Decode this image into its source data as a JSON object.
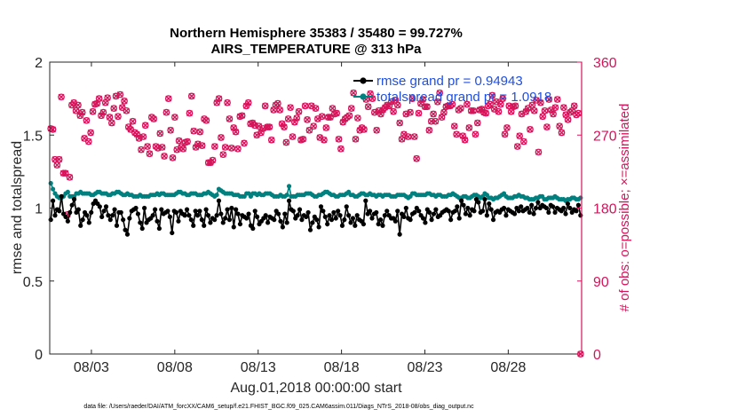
{
  "chart_data": {
    "type": "line",
    "title_line1": "Northern Hemisphere 35383 / 35480 = 99.727%",
    "title_line2": "AIRS_TEMPERATURE @ 313 hPa",
    "xlabel": "Aug.01,2018 00:00:00 start",
    "ylabel": "rmse and totalspread",
    "ylabel_right": "# of obs: o=possible; ×=assimilated",
    "footer": "data file: /Users/raeder/DAI/ATM_forcXX/CAM6_setup/f.e21.FHIST_BGC.f09_025.CAM6assim.011/Diags_NTrS_2018-08/obs_diag_output.nc",
    "xlim": [
      0.5,
      32.4
    ],
    "ylim": [
      0,
      2
    ],
    "ylim_right": [
      0,
      360
    ],
    "xticks": [
      3,
      8,
      13,
      18,
      23,
      28
    ],
    "xtick_labels": [
      "08/03",
      "08/08",
      "08/13",
      "08/18",
      "08/23",
      "08/28"
    ],
    "yticks": [
      0,
      0.5,
      1,
      1.5,
      2
    ],
    "ytick_labels": [
      "0",
      "0.5",
      "1",
      "1.5",
      "2"
    ],
    "yticks_right": [
      0,
      90,
      180,
      270,
      360
    ],
    "ytick_labels_right": [
      "0",
      "90",
      "180",
      "270",
      "360"
    ],
    "colors": {
      "rmse": "#000000",
      "spread": "#00807f",
      "obs": "#d6145a",
      "legend_text": "#1f4fe0"
    },
    "series": [
      {
        "name": "rmse grand pr = 0.94943",
        "values": [
          0.92,
          1.05,
          0.95,
          0.99,
          0.98,
          1.08,
          0.96,
          0.94,
          0.91,
          0.97,
          1.02,
          1.06,
          0.97,
          0.99,
          0.88,
          0.92,
          0.97,
          0.95,
          0.9,
          0.97,
          1.03,
          1.05,
          1.03,
          1.01,
          0.94,
          0.98,
          1.01,
          0.95,
          0.92,
          0.95,
          0.99,
          0.88,
          0.97,
          0.97,
          0.92,
          0.85,
          0.82,
          0.93,
          0.98,
          0.99,
          1.0,
          0.96,
          0.9,
          0.86,
          1.0,
          0.9,
          0.92,
          0.93,
          0.95,
          0.99,
          0.91,
          0.86,
          0.99,
          0.96,
          0.97,
          0.98,
          0.94,
          0.83,
          0.98,
          0.97,
          0.91,
          0.98,
          0.96,
          0.95,
          0.99,
          0.95,
          0.92,
          0.88,
          0.98,
          0.95,
          0.98,
          0.92,
          0.88,
          0.99,
          0.95,
          0.9,
          0.93,
          0.92,
          0.95,
          1.05,
          0.96,
          0.9,
          0.93,
          0.99,
          0.92,
          1.0,
          0.87,
          0.99,
          0.96,
          0.89,
          0.95,
          0.94,
          0.93,
          0.96,
          0.88,
          0.86,
          0.98,
          0.94,
          0.89,
          0.91,
          0.93,
          0.95,
          0.9,
          0.94,
          0.93,
          0.92,
          0.98,
          0.96,
          0.91,
          0.87,
          0.96,
          0.9,
          1.05,
          0.99,
          0.98,
          0.93,
          0.95,
          0.99,
          0.92,
          0.95,
          0.94,
          0.97,
          0.85,
          0.9,
          0.94,
          0.92,
          0.87,
          1.01,
          0.98,
          0.94,
          0.89,
          0.95,
          0.92,
          0.97,
          0.93,
          0.98,
          0.95,
          0.88,
          0.92,
          1.01,
          0.95,
          0.9,
          0.93,
          0.88,
          0.95,
          0.92,
          0.91,
          0.89,
          1.05,
          0.96,
          0.98,
          0.93,
          0.96,
          0.97,
          0.89,
          0.92,
          0.88,
          0.95,
          0.98,
          0.95,
          0.93,
          0.93,
          0.91,
          0.98,
          0.82,
          0.96,
          0.94,
          1.0,
          0.93,
          0.92,
          0.96,
          0.97,
          1.0,
          0.98,
          0.95,
          0.93,
          0.9,
          0.99,
          0.97,
          0.92,
          0.96,
          0.99,
          0.94,
          0.95,
          0.97,
          0.98,
          0.99,
          0.98,
          0.92,
          0.97,
          0.98,
          1.01,
          0.93,
          1.05,
          1.02,
          0.96,
          1.0,
          0.95,
          0.99,
          0.98,
          1.06,
          1.04,
          0.97,
          0.98,
          1.06,
          0.95,
          1.03,
          0.99,
          0.92,
          0.97,
          0.98,
          0.97,
          0.99,
          1.0,
          0.95,
          0.99,
          0.98,
          0.97,
          0.96,
          1.0,
          0.98,
          1.01,
          0.98,
          0.99,
          1.0,
          0.97,
          1.02,
          0.96,
          1.0,
          1.04,
          1.0,
          1.02,
          1.01,
          1.0,
          0.97,
          1.02,
          1.01,
          0.97,
          1.0,
          0.99,
          0.98,
          1.0,
          0.96,
          1.03,
          1.0,
          0.97,
          0.99,
          0.98,
          1.02,
          0.95
        ]
      },
      {
        "name": "totalspread grand pr = 1.0918",
        "values": [
          1.17,
          1.13,
          1.1,
          1.08,
          1.07,
          1.07,
          1.08,
          1.1,
          1.11,
          1.08,
          1.08,
          1.08,
          1.1,
          1.1,
          1.11,
          1.1,
          1.1,
          1.1,
          1.1,
          1.09,
          1.09,
          1.1,
          1.11,
          1.11,
          1.1,
          1.1,
          1.1,
          1.09,
          1.09,
          1.1,
          1.1,
          1.11,
          1.11,
          1.1,
          1.09,
          1.09,
          1.1,
          1.09,
          1.09,
          1.08,
          1.08,
          1.08,
          1.09,
          1.08,
          1.08,
          1.08,
          1.08,
          1.09,
          1.09,
          1.09,
          1.1,
          1.09,
          1.1,
          1.1,
          1.09,
          1.09,
          1.09,
          1.09,
          1.09,
          1.1,
          1.11,
          1.11,
          1.1,
          1.1,
          1.09,
          1.09,
          1.1,
          1.1,
          1.1,
          1.09,
          1.09,
          1.09,
          1.1,
          1.1,
          1.11,
          1.1,
          1.09,
          1.08,
          1.09,
          1.13,
          1.12,
          1.11,
          1.1,
          1.1,
          1.1,
          1.1,
          1.09,
          1.09,
          1.09,
          1.08,
          1.08,
          1.08,
          1.1,
          1.1,
          1.08,
          1.1,
          1.1,
          1.09,
          1.1,
          1.09,
          1.09,
          1.1,
          1.1,
          1.1,
          1.09,
          1.08,
          1.08,
          1.08,
          1.09,
          1.08,
          1.08,
          1.09,
          1.15,
          1.08,
          1.08,
          1.08,
          1.09,
          1.09,
          1.09,
          1.09,
          1.1,
          1.1,
          1.1,
          1.09,
          1.08,
          1.08,
          1.09,
          1.09,
          1.1,
          1.11,
          1.11,
          1.1,
          1.09,
          1.09,
          1.08,
          1.08,
          1.09,
          1.09,
          1.09,
          1.1,
          1.11,
          1.09,
          1.09,
          1.08,
          1.08,
          1.09,
          1.1,
          1.1,
          1.09,
          1.09,
          1.1,
          1.09,
          1.09,
          1.08,
          1.09,
          1.09,
          1.08,
          1.09,
          1.09,
          1.09,
          1.08,
          1.08,
          1.08,
          1.09,
          1.09,
          1.09,
          1.09,
          1.08,
          1.07,
          1.08,
          1.1,
          1.1,
          1.09,
          1.09,
          1.09,
          1.09,
          1.09,
          1.1,
          1.1,
          1.09,
          1.09,
          1.08,
          1.09,
          1.09,
          1.08,
          1.08,
          1.08,
          1.09,
          1.09,
          1.1,
          1.09,
          1.08,
          1.07,
          1.07,
          1.08,
          1.08,
          1.07,
          1.07,
          1.08,
          1.09,
          1.09,
          1.08,
          1.07,
          1.08,
          1.1,
          1.09,
          1.07,
          1.07,
          1.06,
          1.07,
          1.07,
          1.08,
          1.09,
          1.1,
          1.08,
          1.07,
          1.07,
          1.07,
          1.08,
          1.08,
          1.09,
          1.08,
          1.08,
          1.07,
          1.07,
          1.06,
          1.06,
          1.06,
          1.07,
          1.07,
          1.08,
          1.08,
          1.06,
          1.06,
          1.07,
          1.07,
          1.07,
          1.08,
          1.07,
          1.06,
          1.06,
          1.06,
          1.05,
          1.06,
          1.06,
          1.07,
          1.07,
          1.06,
          1.06,
          1.07
        ]
      },
      {
        "name": "# of obs (possible / assimilated)",
        "axis": "right",
        "values": [
          278,
          277,
          240,
          233,
          240,
          317,
          223,
          223,
          172,
          218,
          307,
          310,
          300,
          307,
          294,
          298,
          266,
          288,
          262,
          273,
          299,
          308,
          309,
          315,
          294,
          298,
          310,
          316,
          292,
          285,
          303,
          318,
          293,
          320,
          304,
          312,
          300,
          280,
          277,
          287,
          273,
          271,
          266,
          252,
          268,
          282,
          256,
          247,
          292,
          290,
          256,
          254,
          272,
          255,
          244,
          298,
          315,
          276,
          242,
          292,
          252,
          263,
          255,
          253,
          261,
          262,
          297,
          318,
          275,
          255,
          259,
          274,
          257,
          290,
          288,
          236,
          236,
          239,
          256,
          310,
          315,
          267,
          246,
          255,
          310,
          290,
          254,
          279,
          274,
          253,
          293,
          294,
          260,
          306,
          310,
          284,
          285,
          282,
          270,
          281,
          273,
          278,
          306,
          280,
          280,
          264,
          301,
          307,
          309,
          301,
          284,
          280,
          261,
          290,
          304,
          268,
          286,
          291,
          299,
          264,
          265,
          306,
          289,
          276,
          306,
          281,
          303,
          290,
          267,
          293,
          264,
          279,
          292,
          292,
          303,
          296,
          297,
          265,
          253,
          286,
          290,
          292,
          294,
          303,
          322,
          265,
          291,
          276,
          279,
          277,
          314,
          305,
          321,
          315,
          298,
          276,
          300,
          296,
          301,
          304,
          307,
          306,
          311,
          299,
          313,
          307,
          285,
          265,
          271,
          296,
          268,
          298,
          315,
          268,
          241,
          297,
          309,
          314,
          305,
          305,
          276,
          287,
          296,
          287,
          311,
          322,
          292,
          298,
          305,
          306,
          306,
          308,
          281,
          271,
          301,
          303,
          269,
          264,
          308,
          279,
          300,
          300,
          271,
          285,
          301,
          302,
          298,
          297,
          306,
          308,
          319,
          302,
          311,
          299,
          308,
          315,
          271,
          279,
          306,
          299,
          305,
          306,
          256,
          269,
          296,
          262,
          299,
          303,
          277,
          307,
          300,
          313,
          249,
          310,
          293,
          300,
          280,
          314,
          301,
          296,
          304,
          314,
          281,
          273,
          304,
          295,
          289,
          298,
          300,
          306,
          295,
          297,
          0
        ]
      }
    ]
  }
}
